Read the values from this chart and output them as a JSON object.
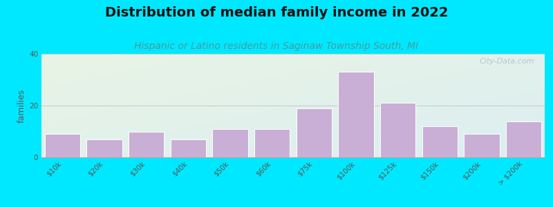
{
  "title": "Distribution of median family income in 2022",
  "subtitle": "Hispanic or Latino residents in Saginaw Township South, MI",
  "categories": [
    "$10k",
    "$20k",
    "$30k",
    "$40k",
    "$50k",
    "$60k",
    "$75k",
    "$100k",
    "$125k",
    "$150k",
    "$200k",
    "> $200k"
  ],
  "values": [
    9,
    7,
    10,
    7,
    11,
    11,
    19,
    33,
    21,
    12,
    9,
    14
  ],
  "bar_color": "#c9afd5",
  "bar_edge_color": "#ffffff",
  "background_outer": "#00e8ff",
  "background_plot_color_topleft": "#e8f4e4",
  "background_plot_color_bottomright": "#dceef2",
  "title_fontsize": 14,
  "subtitle_fontsize": 10,
  "subtitle_color": "#4a9a9a",
  "ylabel": "families",
  "ylabel_fontsize": 9,
  "ylim": [
    0,
    40
  ],
  "yticks": [
    0,
    20,
    40
  ],
  "grid_color": "#cccccc",
  "watermark": "City-Data.com",
  "tick_fontsize": 7.5,
  "tick_color": "#555555",
  "title_color": "#111111"
}
